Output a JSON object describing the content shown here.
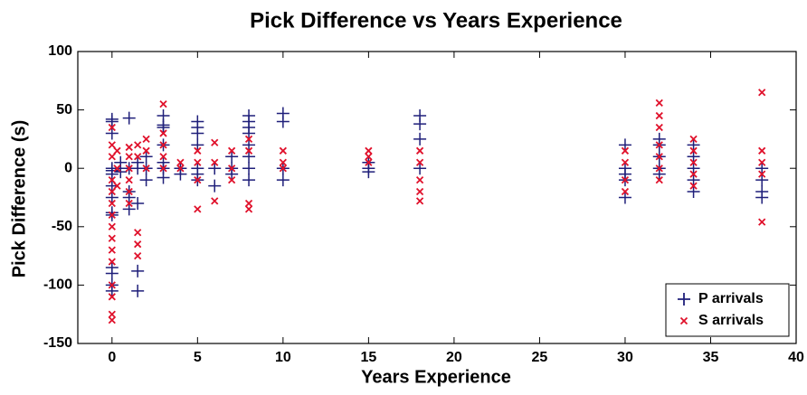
{
  "chart_data": {
    "type": "scatter",
    "title": "Pick Difference vs Years Experience",
    "x_label": "Years Experience",
    "y_label": "Pick Difference (s)",
    "xlim": [
      -2,
      40
    ],
    "xticks": [
      0,
      5,
      10,
      15,
      20,
      25,
      30,
      35,
      40
    ],
    "ylim": [
      -150,
      100
    ],
    "yticks": [
      -150,
      -100,
      -50,
      0,
      50,
      100
    ],
    "legend": "lower right",
    "series": [
      {
        "name": "P arrivals",
        "color": "#1f1f7a",
        "marker": "plus",
        "x": [
          0,
          0,
          0,
          0,
          0,
          0,
          0,
          0,
          0,
          0,
          0,
          0,
          0,
          0,
          0.5,
          0.5,
          0.5,
          1,
          1,
          1,
          1,
          1,
          1.5,
          1.5,
          1.5,
          1.5,
          1.5,
          2,
          2,
          2,
          3,
          3,
          3,
          3,
          3,
          3,
          3,
          4,
          4,
          5,
          5,
          5,
          5,
          5,
          5,
          5,
          6,
          6,
          7,
          7,
          7,
          8,
          8,
          8,
          8,
          8,
          8,
          8,
          8,
          10,
          10,
          10,
          10,
          15,
          15,
          15,
          18,
          18,
          18,
          18,
          30,
          30,
          30,
          30,
          30,
          32,
          32,
          32,
          32,
          32,
          34,
          34,
          34,
          34,
          34,
          38,
          38,
          38,
          38
        ],
        "values": [
          42,
          40,
          30,
          0,
          -2,
          -5,
          -15,
          -25,
          -38,
          -40,
          -85,
          -90,
          -100,
          -105,
          0,
          -3,
          5,
          43,
          0,
          -20,
          -25,
          -35,
          -30,
          -88,
          -105,
          0,
          5,
          0,
          10,
          -10,
          45,
          37,
          35,
          20,
          5,
          0,
          -8,
          0,
          -5,
          40,
          35,
          30,
          20,
          0,
          -5,
          -10,
          0,
          -15,
          0,
          -5,
          10,
          45,
          40,
          35,
          30,
          20,
          10,
          0,
          -10,
          47,
          40,
          0,
          -10,
          5,
          0,
          -3,
          45,
          38,
          25,
          0,
          20,
          0,
          -5,
          -10,
          -25,
          25,
          20,
          10,
          0,
          -5,
          20,
          10,
          0,
          -10,
          -20,
          0,
          -10,
          -20,
          -25
        ]
      },
      {
        "name": "S arrivals",
        "color": "#e0112b",
        "marker": "x",
        "x": [
          0,
          0,
          0,
          0,
          0,
          0,
          0,
          0,
          0,
          0,
          0,
          0,
          0,
          0,
          0,
          0.3,
          0.3,
          0.3,
          1,
          1,
          1,
          1,
          1,
          1,
          1.5,
          1.5,
          1.5,
          1.5,
          1.5,
          2,
          2,
          2,
          3,
          3,
          3,
          3,
          3,
          4,
          4,
          5,
          5,
          5,
          5,
          6,
          6,
          6,
          7,
          7,
          7,
          8,
          8,
          8,
          8,
          10,
          10,
          10,
          15,
          15,
          15,
          18,
          18,
          18,
          18,
          18,
          30,
          30,
          30,
          30,
          32,
          32,
          32,
          32,
          32,
          32,
          32,
          34,
          34,
          34,
          34,
          34,
          38,
          38,
          38,
          38,
          38
        ],
        "values": [
          35,
          20,
          10,
          -10,
          -20,
          -30,
          -40,
          -50,
          -60,
          -70,
          -80,
          -100,
          -110,
          -125,
          -130,
          15,
          0,
          -15,
          18,
          10,
          0,
          -10,
          -20,
          -30,
          20,
          10,
          -55,
          -65,
          -75,
          25,
          15,
          0,
          55,
          30,
          20,
          10,
          0,
          5,
          0,
          15,
          5,
          -10,
          -35,
          22,
          5,
          -28,
          15,
          0,
          -10,
          25,
          15,
          -30,
          -35,
          15,
          5,
          0,
          15,
          10,
          5,
          15,
          5,
          -10,
          -20,
          -28,
          15,
          5,
          -10,
          -20,
          56,
          45,
          35,
          20,
          10,
          0,
          -10,
          25,
          15,
          5,
          -5,
          -15,
          65,
          15,
          5,
          -5,
          -46
        ]
      }
    ]
  }
}
